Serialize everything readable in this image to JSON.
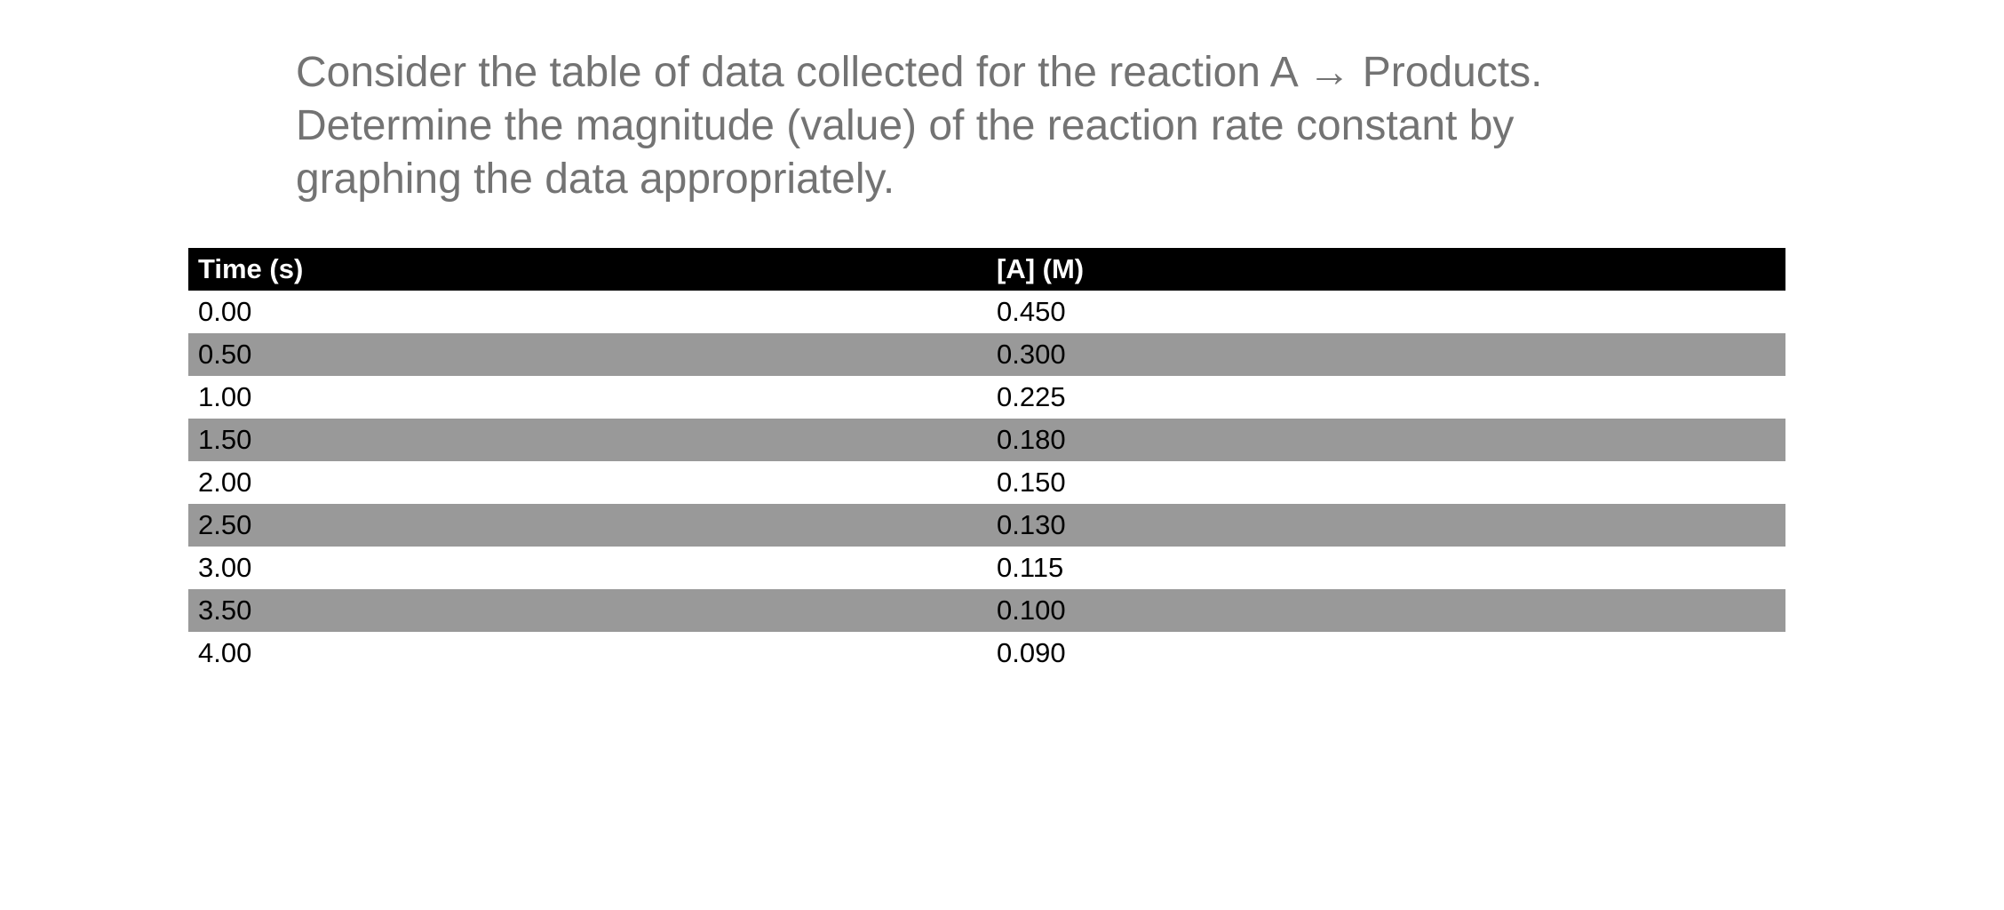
{
  "question": {
    "lines": [
      "Consider the table of data collected for the reaction A → Products.",
      "Determine the magnitude (value) of the reaction rate constant by",
      "graphing the data appropriately."
    ],
    "text_color": "#737373"
  },
  "table": {
    "header": {
      "col1": "Time (s)",
      "col2": "[A] (M)"
    },
    "rows": [
      {
        "time": "0.00",
        "conc": "0.450"
      },
      {
        "time": "0.50",
        "conc": "0.300"
      },
      {
        "time": "1.00",
        "conc": "0.225"
      },
      {
        "time": "1.50",
        "conc": "0.180"
      },
      {
        "time": "2.00",
        "conc": "0.150"
      },
      {
        "time": "2.50",
        "conc": "0.130"
      },
      {
        "time": "3.00",
        "conc": "0.115"
      },
      {
        "time": "3.50",
        "conc": "0.100"
      },
      {
        "time": "4.00",
        "conc": "0.090"
      }
    ],
    "colors": {
      "header_bg": "#000000",
      "header_text": "#ffffff",
      "stripe": "#999999",
      "row_text": "#000000",
      "row_bg": "#ffffff"
    }
  }
}
